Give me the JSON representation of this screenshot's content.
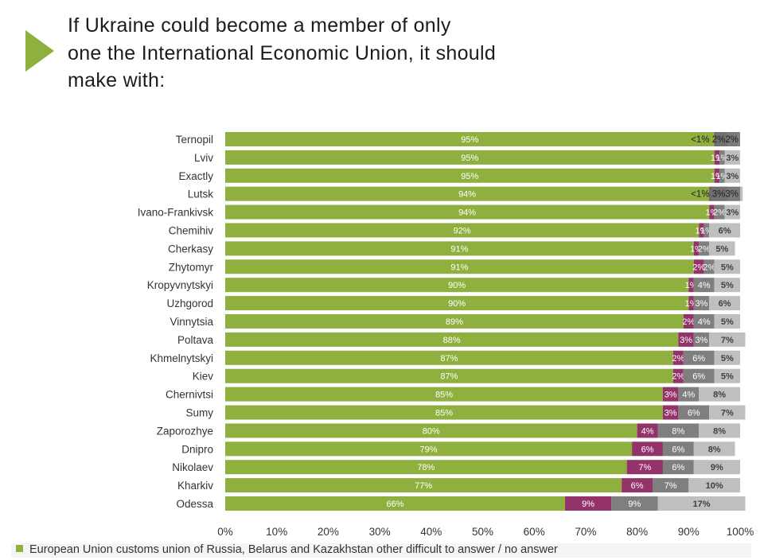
{
  "title": {
    "line1": "If Ukraine could become a member of only",
    "line2": "one the International Economic Union, it should",
    "line3": "make with:"
  },
  "legend_text": "European Union customs union of Russia, Belarus and Kazakhstan other difficult to answer / no answer",
  "colors": {
    "eu": "#8fb03e",
    "customs_union": "#93336a",
    "other": "#7f7f7f",
    "no_answer": "#bfbfbf"
  },
  "chart_data": {
    "type": "bar",
    "orientation": "horizontal",
    "stacked": true,
    "categories": [
      "Ternopil",
      "Lviv",
      "Exactly",
      "Lutsk",
      "Ivano-Frankivsk",
      "Chemihiv",
      "Cherkasy",
      "Zhytomyr",
      "Kropyvnytskyi",
      "Uzhgorod",
      "Vinnytsia",
      "Poltava",
      "Khmelnytskyi",
      "Kiev",
      "Chernivtsi",
      "Sumy",
      "Zaporozhye",
      "Dnipro",
      "Nikolaev",
      "Kharkiv",
      "Odessa"
    ],
    "series": [
      {
        "name": "European Union",
        "color": "#8fb03e",
        "values": [
          95,
          95,
          95,
          94,
          94,
          92,
          91,
          91,
          90,
          90,
          89,
          88,
          87,
          87,
          85,
          85,
          80,
          79,
          78,
          77,
          66
        ],
        "labels": [
          "95%",
          "95%",
          "95%",
          "94%",
          "94%",
          "92%",
          "91%",
          "91%",
          "90%",
          "90%",
          "89%",
          "88%",
          "87%",
          "87%",
          "85%",
          "85%",
          "80%",
          "79%",
          "78%",
          "77%",
          "66%"
        ]
      },
      {
        "name": "customs union of Russia, Belarus and Kazakhstan",
        "color": "#93336a",
        "values": [
          0.5,
          1,
          1,
          0.5,
          1,
          1,
          1,
          2,
          1,
          1,
          2,
          3,
          2,
          2,
          3,
          3,
          4,
          6,
          7,
          6,
          9
        ],
        "labels": [
          "",
          "1%",
          "1%",
          "",
          "1%",
          "1%",
          "1%",
          "2%",
          "1%",
          "1%",
          "2%",
          "3%",
          "2%",
          "2%",
          "3%",
          "3%",
          "4%",
          "6%",
          "7%",
          "6%",
          "9%"
        ]
      },
      {
        "name": "other",
        "color": "#7f7f7f",
        "values": [
          2,
          1,
          1,
          3,
          2,
          1,
          2,
          2,
          4,
          3,
          4,
          3,
          6,
          6,
          4,
          6,
          8,
          6,
          6,
          7,
          9
        ],
        "labels": [
          "",
          "1%",
          "1%",
          "",
          "2%",
          "1%",
          "2%",
          "2%",
          "4%",
          "3%",
          "4%",
          "3%",
          "6%",
          "6%",
          "4%",
          "6%",
          "8%",
          "6%",
          "6%",
          "7%",
          "9%"
        ]
      },
      {
        "name": "difficult to answer / no answer",
        "color": "#bfbfbf",
        "values": [
          2,
          3,
          3,
          3,
          3,
          6,
          5,
          5,
          5,
          6,
          5,
          7,
          5,
          5,
          8,
          7,
          8,
          8,
          9,
          10,
          17
        ],
        "labels": [
          "",
          "3%",
          "3%",
          "",
          "3%",
          "6%",
          "5%",
          "5%",
          "5%",
          "6%",
          "5%",
          "7%",
          "5%",
          "5%",
          "8%",
          "7%",
          "8%",
          "8%",
          "9%",
          "10%",
          "17%"
        ]
      }
    ],
    "overlay_labels": [
      {
        "category": "Ternopil",
        "text": "<1% 2%2%"
      },
      {
        "category": "Lutsk",
        "text": "<1% 3%3%"
      }
    ],
    "x_ticks": [
      "0%",
      "10%",
      "20%",
      "30%",
      "40%",
      "50%",
      "60%",
      "70%",
      "80%",
      "90%",
      "100%"
    ],
    "xlim": [
      0,
      100
    ],
    "legend_position": "bottom"
  }
}
